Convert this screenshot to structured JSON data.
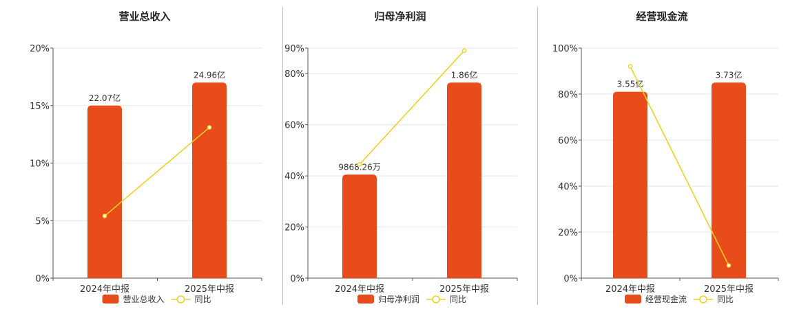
{
  "colors": {
    "bar": "#e84c1b",
    "line": "#f2d021",
    "grid": "#e6e6e6",
    "axis": "#555555"
  },
  "chart_data": [
    {
      "type": "bar",
      "title": "营业总收入",
      "categories": [
        "2024年中报",
        "2025年中报"
      ],
      "ylim": [
        0,
        20
      ],
      "yticks": [
        0,
        5,
        10,
        15,
        20
      ],
      "ytick_labels": [
        "0%",
        "5%",
        "10%",
        "15%",
        "20%"
      ],
      "bar_series": {
        "name": "营业总收入",
        "values": [
          15.0,
          17.0
        ],
        "labels": [
          "22.07亿",
          "24.96亿"
        ]
      },
      "line_series": {
        "name": "同比",
        "values": [
          5.4,
          13.1
        ]
      },
      "grid": true,
      "legend": "bottom"
    },
    {
      "type": "bar",
      "title": "归母净利润",
      "categories": [
        "2024年中报",
        "2025年中报"
      ],
      "ylim": [
        0,
        90
      ],
      "yticks": [
        0,
        20,
        40,
        60,
        80,
        90
      ],
      "ytick_labels": [
        "0%",
        "20%",
        "40%",
        "60%",
        "80%",
        "90%"
      ],
      "bar_series": {
        "name": "归母净利润",
        "values": [
          40.5,
          76.5
        ],
        "labels": [
          "9868.26万",
          "1.86亿"
        ]
      },
      "line_series": {
        "name": "同比",
        "values": [
          44.5,
          89.0
        ]
      },
      "grid": true,
      "legend": "bottom"
    },
    {
      "type": "bar",
      "title": "经营现金流",
      "categories": [
        "2024年中报",
        "2025年中报"
      ],
      "ylim": [
        0,
        100
      ],
      "yticks": [
        0,
        20,
        40,
        60,
        80,
        100
      ],
      "ytick_labels": [
        "0%",
        "20%",
        "40%",
        "60%",
        "80%",
        "100%"
      ],
      "bar_series": {
        "name": "经营现金流",
        "values": [
          81.0,
          85.0
        ],
        "labels": [
          "3.55亿",
          "3.73亿"
        ]
      },
      "line_series": {
        "name": "同比",
        "values": [
          92.0,
          5.5
        ]
      },
      "grid": true,
      "legend": "bottom"
    }
  ]
}
